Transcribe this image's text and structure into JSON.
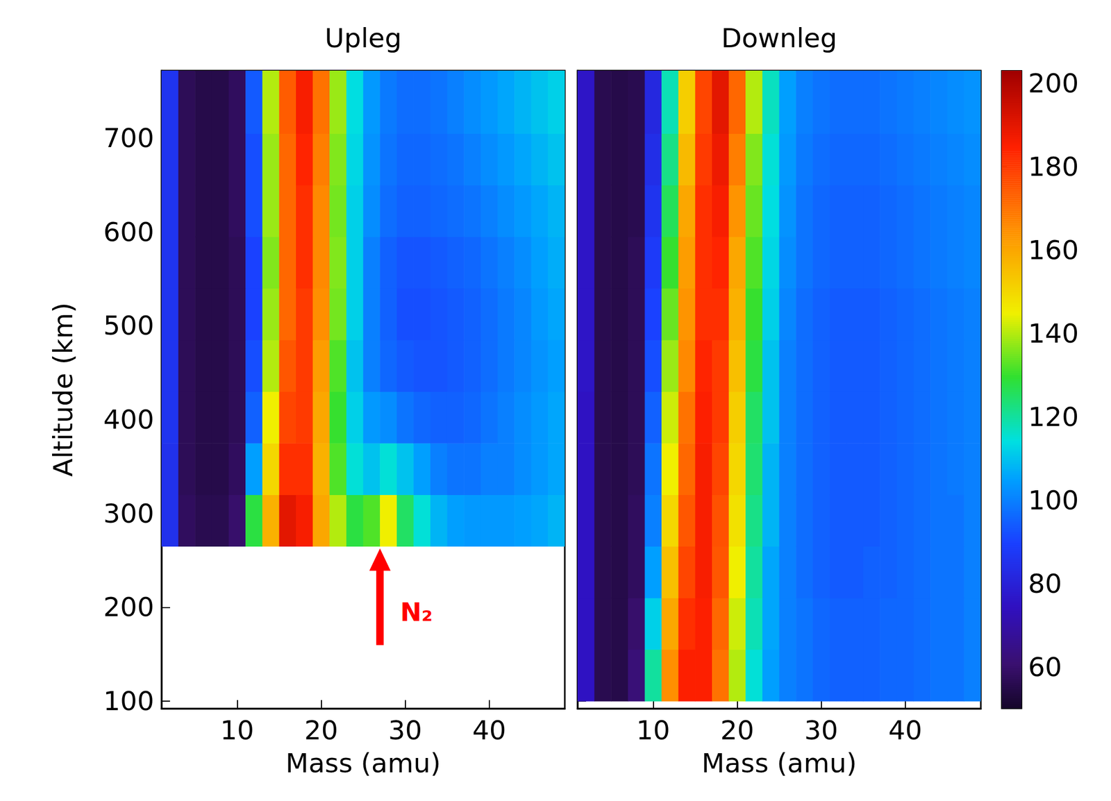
{
  "chart_data": {
    "type": "heatmap",
    "panels": [
      {
        "title": "Upleg",
        "xlabel": "Mass (amu)",
        "ylabel": "Altitude (km)",
        "xlim": [
          1,
          49
        ],
        "xticks": [
          10,
          20,
          30,
          40
        ],
        "ylim": [
          92,
          772
        ],
        "yticks": [
          100,
          200,
          300,
          400,
          500,
          600,
          700
        ],
        "x_edges": [
          1,
          3,
          5,
          7,
          9,
          11,
          13,
          15,
          17,
          19,
          21,
          23,
          25,
          27,
          29,
          31,
          33,
          35,
          37,
          39,
          41,
          43,
          45,
          47,
          49
        ],
        "y_edges": [
          265,
          320,
          375,
          430,
          485,
          540,
          595,
          650,
          705,
          772
        ],
        "cells": [
          [
            85,
            58,
            56,
            56,
            60,
            128,
            158,
            190,
            186,
            160,
            140,
            128,
            132,
            145,
            125,
            115,
            108,
            105,
            104,
            104,
            104,
            105,
            106,
            108
          ],
          [
            85,
            57,
            55,
            55,
            58,
            105,
            150,
            182,
            182,
            158,
            132,
            115,
            110,
            115,
            110,
            105,
            100,
            98,
            98,
            100,
            100,
            102,
            104,
            106
          ],
          [
            86,
            57,
            55,
            55,
            57,
            95,
            145,
            178,
            180,
            160,
            130,
            112,
            104,
            102,
            98,
            96,
            95,
            95,
            96,
            98,
            100,
            102,
            104,
            106
          ],
          [
            86,
            57,
            55,
            55,
            57,
            92,
            140,
            175,
            180,
            162,
            132,
            110,
            100,
            96,
            94,
            93,
            93,
            94,
            95,
            97,
            99,
            101,
            103,
            105
          ],
          [
            86,
            57,
            55,
            55,
            57,
            90,
            138,
            172,
            180,
            165,
            135,
            112,
            100,
            95,
            92,
            92,
            93,
            94,
            95,
            97,
            99,
            101,
            104,
            106
          ],
          [
            86,
            57,
            55,
            55,
            57,
            90,
            136,
            172,
            182,
            166,
            136,
            112,
            100,
            95,
            93,
            93,
            94,
            95,
            96,
            98,
            100,
            102,
            105,
            107
          ],
          [
            86,
            57,
            55,
            55,
            58,
            92,
            138,
            172,
            182,
            166,
            135,
            112,
            102,
            97,
            95,
            95,
            96,
            97,
            98,
            100,
            102,
            104,
            106,
            108
          ],
          [
            86,
            57,
            55,
            55,
            58,
            92,
            138,
            172,
            184,
            168,
            136,
            113,
            103,
            98,
            96,
            96,
            97,
            98,
            100,
            102,
            104,
            106,
            108,
            110
          ],
          [
            86,
            57,
            55,
            55,
            58,
            94,
            140,
            174,
            186,
            170,
            138,
            114,
            104,
            99,
            97,
            97,
            98,
            100,
            102,
            104,
            106,
            108,
            110,
            112
          ]
        ],
        "annotations": [
          {
            "text": "N₂",
            "x": 27,
            "y": 265,
            "color": "#ff0000"
          }
        ]
      },
      {
        "title": "Downleg",
        "xlabel": "Mass (amu)",
        "tick_labels": "x",
        "xlim": [
          1,
          49
        ],
        "xticks": [
          10,
          20,
          30,
          40
        ],
        "ylim": [
          92,
          772
        ],
        "yticks": [
          100,
          200,
          300,
          400,
          500,
          600,
          700
        ],
        "x_edges": [
          1,
          3,
          5,
          7,
          9,
          11,
          13,
          15,
          17,
          19,
          21,
          23,
          25,
          27,
          29,
          31,
          33,
          35,
          37,
          39,
          41,
          43,
          45,
          47,
          49
        ],
        "y_edges": [
          100,
          155,
          210,
          265,
          320,
          375,
          430,
          485,
          540,
          595,
          650,
          705,
          772
        ],
        "cells": [
          [
            75,
            56,
            55,
            62,
            120,
            165,
            185,
            185,
            170,
            140,
            115,
            105,
            100,
            98,
            96,
            95,
            95,
            95,
            96,
            96,
            97,
            98,
            98,
            100
          ],
          [
            75,
            56,
            55,
            60,
            112,
            160,
            182,
            185,
            172,
            142,
            118,
            106,
            100,
            98,
            96,
            95,
            95,
            95,
            96,
            96,
            97,
            98,
            98,
            100
          ],
          [
            75,
            56,
            55,
            58,
            105,
            155,
            178,
            186,
            175,
            145,
            120,
            106,
            100,
            97,
            95,
            94,
            94,
            95,
            95,
            96,
            97,
            98,
            98,
            100
          ],
          [
            75,
            56,
            55,
            58,
            100,
            150,
            175,
            186,
            176,
            148,
            122,
            108,
            100,
            97,
            95,
            94,
            94,
            94,
            95,
            96,
            97,
            98,
            98,
            100
          ],
          [
            75,
            56,
            55,
            57,
            98,
            145,
            172,
            186,
            178,
            150,
            124,
            108,
            100,
            97,
            95,
            94,
            94,
            94,
            95,
            96,
            97,
            98,
            99,
            100
          ],
          [
            75,
            56,
            55,
            57,
            95,
            142,
            170,
            185,
            180,
            152,
            125,
            110,
            100,
            97,
            95,
            94,
            94,
            94,
            95,
            96,
            97,
            98,
            99,
            100
          ],
          [
            76,
            56,
            55,
            57,
            92,
            138,
            166,
            184,
            180,
            155,
            128,
            110,
            100,
            97,
            95,
            94,
            94,
            94,
            95,
            96,
            97,
            98,
            99,
            100
          ],
          [
            76,
            56,
            55,
            57,
            90,
            134,
            164,
            182,
            182,
            158,
            130,
            112,
            101,
            97,
            95,
            94,
            94,
            94,
            95,
            96,
            97,
            98,
            99,
            100
          ],
          [
            76,
            56,
            55,
            57,
            88,
            130,
            162,
            182,
            184,
            160,
            132,
            113,
            102,
            98,
            96,
            95,
            95,
            95,
            96,
            97,
            98,
            99,
            100,
            101
          ],
          [
            76,
            56,
            55,
            56,
            86,
            126,
            160,
            182,
            186,
            164,
            134,
            114,
            103,
            98,
            96,
            95,
            95,
            95,
            96,
            97,
            98,
            99,
            100,
            101
          ],
          [
            76,
            56,
            55,
            56,
            84,
            122,
            156,
            180,
            188,
            168,
            136,
            115,
            104,
            99,
            97,
            96,
            96,
            96,
            97,
            98,
            99,
            100,
            101,
            102
          ],
          [
            76,
            56,
            55,
            56,
            82,
            118,
            152,
            178,
            190,
            172,
            140,
            117,
            105,
            100,
            98,
            97,
            97,
            97,
            98,
            99,
            100,
            101,
            102,
            103
          ]
        ]
      }
    ],
    "colorbar": {
      "range": [
        50,
        203
      ],
      "ticks": [
        60,
        80,
        100,
        120,
        140,
        160,
        180,
        200
      ]
    }
  }
}
